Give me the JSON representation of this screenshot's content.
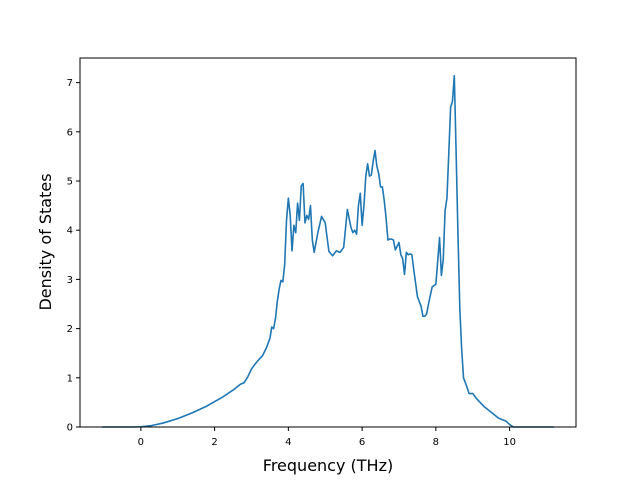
{
  "chart_data": {
    "type": "line",
    "title": "",
    "xlabel": "Frequency (THz)",
    "ylabel": "Density of States",
    "xlim": [
      -1.65,
      11.8
    ],
    "ylim": [
      0,
      7.5
    ],
    "xticks": [
      0,
      2,
      4,
      6,
      8,
      10
    ],
    "yticks": [
      0,
      1,
      2,
      3,
      4,
      5,
      6,
      7
    ],
    "xtick_labels": [
      "0",
      "2",
      "4",
      "6",
      "8",
      "10"
    ],
    "ytick_labels": [
      "0",
      "1",
      "2",
      "3",
      "4",
      "5",
      "6",
      "7"
    ],
    "grid": false,
    "legend": "none",
    "colors": {
      "line": "#1f77b4",
      "axes": "#000000",
      "background": "#ffffff"
    },
    "series": [
      {
        "x": [
          -1.05,
          -0.6,
          -0.2,
          0.0,
          0.3,
          0.6,
          1.0,
          1.4,
          1.8,
          2.2,
          2.5,
          2.7,
          2.8,
          2.9,
          3.0,
          3.1,
          3.2,
          3.3,
          3.4,
          3.45,
          3.5,
          3.55,
          3.6,
          3.65,
          3.7,
          3.75,
          3.8,
          3.85,
          3.9,
          3.95,
          4.0,
          4.05,
          4.1,
          4.15,
          4.2,
          4.25,
          4.3,
          4.35,
          4.4,
          4.45,
          4.5,
          4.55,
          4.6,
          4.65,
          4.7,
          4.75,
          4.8,
          4.9,
          5.0,
          5.05,
          5.1,
          5.2,
          5.3,
          5.4,
          5.5,
          5.6,
          5.7,
          5.75,
          5.8,
          5.85,
          5.9,
          5.95,
          6.0,
          6.05,
          6.1,
          6.15,
          6.2,
          6.25,
          6.3,
          6.35,
          6.4,
          6.45,
          6.5,
          6.55,
          6.6,
          6.65,
          6.7,
          6.75,
          6.8,
          6.85,
          6.9,
          7.0,
          7.05,
          7.1,
          7.15,
          7.2,
          7.25,
          7.3,
          7.35,
          7.4,
          7.5,
          7.55,
          7.6,
          7.65,
          7.7,
          7.75,
          7.8,
          7.9,
          8.0,
          8.1,
          8.15,
          8.2,
          8.25,
          8.3,
          8.35,
          8.4,
          8.45,
          8.5,
          8.55,
          8.6,
          8.65,
          8.7,
          8.75,
          8.8,
          8.85,
          8.9,
          9.0,
          9.1,
          9.2,
          9.3,
          9.5,
          9.7,
          9.9,
          10.0,
          10.1,
          10.2,
          10.5,
          11.2
        ],
        "y": [
          0.0,
          0.0,
          0.0,
          0.005,
          0.03,
          0.08,
          0.17,
          0.29,
          0.43,
          0.6,
          0.75,
          0.87,
          0.9,
          1.02,
          1.18,
          1.28,
          1.37,
          1.45,
          1.6,
          1.7,
          1.8,
          2.03,
          2.0,
          2.2,
          2.55,
          2.8,
          2.98,
          2.95,
          3.3,
          4.2,
          4.65,
          4.3,
          3.58,
          4.1,
          3.95,
          4.55,
          4.2,
          4.9,
          4.95,
          4.15,
          4.3,
          4.22,
          4.5,
          3.8,
          3.55,
          3.75,
          3.95,
          4.28,
          4.15,
          3.85,
          3.57,
          3.48,
          3.58,
          3.55,
          3.65,
          4.42,
          4.05,
          3.95,
          4.0,
          3.92,
          4.5,
          4.75,
          4.1,
          4.5,
          5.1,
          5.35,
          5.1,
          5.12,
          5.4,
          5.62,
          5.3,
          5.15,
          4.88,
          4.88,
          4.6,
          4.25,
          3.8,
          3.82,
          3.82,
          3.8,
          3.6,
          3.75,
          3.5,
          3.42,
          3.1,
          3.55,
          3.5,
          3.52,
          3.5,
          3.2,
          2.65,
          2.55,
          2.45,
          2.25,
          2.25,
          2.3,
          2.5,
          2.85,
          2.9,
          3.85,
          3.08,
          3.4,
          4.4,
          4.65,
          5.55,
          6.5,
          6.62,
          7.14,
          5.55,
          3.9,
          2.4,
          1.58,
          1.0,
          0.9,
          0.8,
          0.68,
          0.68,
          0.58,
          0.5,
          0.42,
          0.3,
          0.18,
          0.12,
          0.05,
          0.0,
          0.0,
          0.0,
          0.0
        ]
      }
    ]
  }
}
